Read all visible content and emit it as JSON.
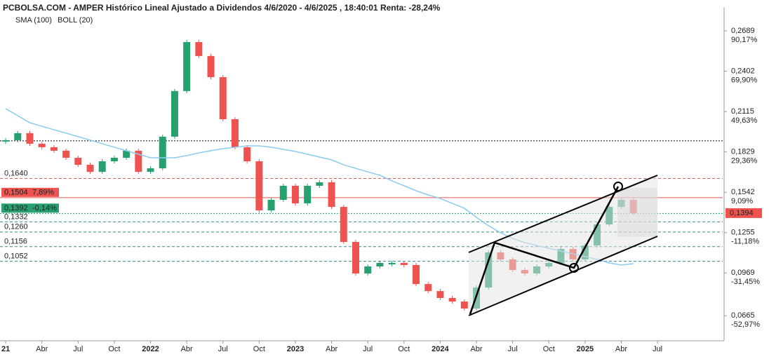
{
  "chart_data": {
    "type": "candlestick",
    "title": "PCBOLSA.COM - AMPER Histórico Lineal Ajustado a Dividendos 4/6/2020 - 4/6/2025 , 18:40:01 Renta: -28,24%",
    "x": [
      0,
      1,
      2,
      3,
      4,
      5,
      6,
      7,
      8,
      9,
      10,
      11,
      12,
      13,
      14,
      15,
      16,
      17,
      18,
      19,
      20,
      21,
      22,
      23,
      24,
      25,
      26,
      27,
      28,
      29,
      30,
      31,
      32,
      33,
      34,
      35,
      36,
      37,
      38,
      39,
      40,
      41,
      42,
      43,
      44,
      45,
      46,
      47,
      48,
      49,
      50,
      51,
      52
    ],
    "series": [
      {
        "name": "AMPER",
        "color": "#ef5350",
        "up_color": "#26a06e",
        "values": [
          0.1912,
          0.1962,
          0.1887,
          0.1862,
          0.1837,
          0.1787,
          0.1737,
          0.1687,
          0.1762,
          0.1787,
          0.1837,
          0.1687,
          0.1712,
          0.1937,
          0.2261,
          0.2609,
          0.251,
          0.236,
          0.2061,
          0.1862,
          0.1762,
          0.1413,
          0.1488,
          0.1588,
          0.1463,
          0.1588,
          0.1613,
          0.1438,
          0.1189,
          0.0965,
          0.1015,
          0.104,
          0.104,
          0.1025,
          0.089,
          0.084,
          0.0791,
          0.0766,
          0.0716,
          0.0865,
          0.1115,
          0.1065,
          0.099,
          0.0965,
          0.1015,
          0.104,
          0.1139,
          0.1065,
          0.1164,
          0.1314,
          0.1438,
          0.1488,
          0.1394
        ]
      },
      {
        "name": "SMA (100)",
        "color": "#8ccbf0",
        "kind": "line",
        "values": [
          0.2136,
          0.2086,
          0.2036,
          0.2011,
          0.1986,
          0.1962,
          0.1937,
          0.1912,
          0.1887,
          0.1862,
          0.1837,
          0.1812,
          0.1787,
          0.1787,
          0.1787,
          0.1802,
          0.1822,
          0.1837,
          0.1852,
          0.1862,
          0.1872,
          0.1872,
          0.1862,
          0.1847,
          0.1832,
          0.1812,
          0.1792,
          0.1772,
          0.1737,
          0.1712,
          0.1687,
          0.1663,
          0.1623,
          0.1588,
          0.1553,
          0.1523,
          0.1498,
          0.1463,
          0.1428,
          0.1364,
          0.1304,
          0.1254,
          0.1214,
          0.1184,
          0.1164,
          0.1144,
          0.1124,
          0.1105,
          0.1085,
          0.1065,
          0.104,
          0.1025,
          0.1035
        ]
      }
    ],
    "indicator_labels": [
      {
        "text": "SMA (100)",
        "color": "#8ccbf0"
      },
      {
        "text": "BOLL (20)",
        "color": "#d0d0d0"
      }
    ],
    "xlim": [
      -0.47,
      59.4
    ],
    "xticks": [
      {
        "value": 0,
        "label": "21"
      },
      {
        "value": 3,
        "label": "Abr"
      },
      {
        "value": 6,
        "label": "Jul"
      },
      {
        "value": 9,
        "label": "Oct"
      },
      {
        "value": 12,
        "label": "2022"
      },
      {
        "value": 15,
        "label": "Abr"
      },
      {
        "value": 18,
        "label": "Jul"
      },
      {
        "value": 21,
        "label": "Oct"
      },
      {
        "value": 24,
        "label": "2023"
      },
      {
        "value": 27,
        "label": "Abr"
      },
      {
        "value": 30,
        "label": "Jul"
      },
      {
        "value": 33,
        "label": "Oct"
      },
      {
        "value": 36,
        "label": "2024"
      },
      {
        "value": 39,
        "label": "Abr"
      },
      {
        "value": 42,
        "label": "Jul"
      },
      {
        "value": 45,
        "label": "Oct"
      },
      {
        "value": 48,
        "label": "2025"
      },
      {
        "value": 51,
        "label": "Abr"
      },
      {
        "value": 54,
        "label": "Jul"
      }
    ],
    "ylim": [
      0.0492,
      0.2858
    ],
    "yticks": [
      {
        "value": 0.2689,
        "label": "0,2689"
      },
      {
        "value": 0.2402,
        "label": "0,2402"
      },
      {
        "value": 0.2115,
        "label": "0,2115"
      },
      {
        "value": 0.1829,
        "label": "0,1829"
      },
      {
        "value": 0.1542,
        "label": "0,1542"
      },
      {
        "value": 0.1255,
        "label": "0,1255"
      },
      {
        "value": 0.0969,
        "label": "0,0969"
      },
      {
        "value": 0.0665,
        "label": "0,0665"
      }
    ],
    "ytick_returns": [
      "90,17%",
      "69,90%",
      "49,63%",
      "29,36%",
      "9,09%",
      "-11,18%",
      "-31,45%",
      "-52,97%"
    ],
    "levels": [
      {
        "value": 0.1907,
        "color": "#000000",
        "style": "dotted"
      },
      {
        "value": 0.164,
        "label": "0,1640",
        "color": "#e06060",
        "style": "dashed"
      },
      {
        "value": 0.1504,
        "label": "0,1504",
        "change": "7,89%",
        "color": "#ef5350",
        "style": "solid",
        "box": true
      },
      {
        "value": 0.1392,
        "label": "0,1392",
        "change": "-0,14%",
        "color": "#26a06e",
        "style": "dotted",
        "box": true
      },
      {
        "value": 0.1332,
        "label": "0,1332",
        "color": "#2e8b8b",
        "style": "dashed"
      },
      {
        "value": 0.126,
        "label": "0,1260",
        "color": "#2e8b8b",
        "style": "dashed"
      },
      {
        "value": 0.1156,
        "label": "0,1156",
        "color": "#2e8b8b",
        "style": "dashed"
      },
      {
        "value": 0.1052,
        "label": "0,1052",
        "color": "#2e8b8b",
        "style": "dashed"
      }
    ],
    "last_price": {
      "value": 0.1394,
      "label": "0,1394",
      "color": "#ef5350"
    }
  }
}
